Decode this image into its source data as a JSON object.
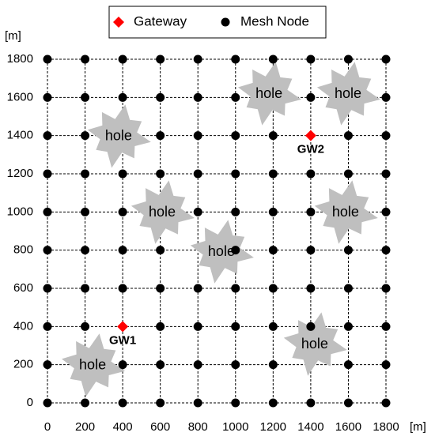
{
  "chart_data": {
    "type": "scatter",
    "xlabel": "[m]",
    "ylabel": "[m]",
    "xlim": [
      0,
      1800
    ],
    "ylim": [
      0,
      1800
    ],
    "xticks": [
      0,
      200,
      400,
      600,
      800,
      1000,
      1200,
      1400,
      1600,
      1800
    ],
    "yticks": [
      0,
      200,
      400,
      600,
      800,
      1000,
      1200,
      1400,
      1600,
      1800
    ],
    "grid": true,
    "legend": "top",
    "series": [
      {
        "name": "Gateway",
        "color": "#ff0000",
        "marker": "diamond",
        "x": [
          400,
          1400
        ],
        "values": [
          400,
          1400
        ],
        "point_labels": [
          "GW1",
          "GW2"
        ]
      },
      {
        "name": "Mesh Node",
        "color": "#000000",
        "marker": "circle",
        "x": [
          0,
          200,
          400,
          600,
          800,
          1000,
          1200,
          1400,
          1600,
          1800,
          0,
          200,
          400,
          600,
          800,
          1000,
          1400,
          1800,
          0,
          200,
          600,
          800,
          1000,
          1200,
          1600,
          1800,
          0,
          200,
          400,
          600,
          800,
          1000,
          1200,
          1400,
          1600,
          1800,
          0,
          200,
          400,
          800,
          1000,
          1200,
          1400,
          1800,
          0,
          200,
          400,
          600,
          1000,
          1200,
          1400,
          1600,
          1800,
          0,
          200,
          400,
          600,
          800,
          1000,
          1200,
          1400,
          1600,
          1800,
          0,
          200,
          600,
          800,
          1000,
          1200,
          1400,
          1600,
          1800,
          0,
          400,
          600,
          800,
          1000,
          1200,
          1600,
          1800,
          0,
          200,
          400,
          600,
          800,
          1000,
          1200,
          1400,
          1600,
          1800
        ],
        "values": [
          1800,
          1800,
          1800,
          1800,
          1800,
          1800,
          1800,
          1800,
          1800,
          1800,
          1600,
          1600,
          1600,
          1600,
          1600,
          1600,
          1600,
          1600,
          1400,
          1400,
          1400,
          1400,
          1400,
          1400,
          1400,
          1400,
          1200,
          1200,
          1200,
          1200,
          1200,
          1200,
          1200,
          1200,
          1200,
          1200,
          1000,
          1000,
          1000,
          1000,
          1000,
          1000,
          1000,
          1000,
          800,
          800,
          800,
          800,
          800,
          800,
          800,
          800,
          800,
          600,
          600,
          600,
          600,
          600,
          600,
          600,
          600,
          600,
          600,
          400,
          400,
          400,
          400,
          400,
          400,
          400,
          400,
          400,
          200,
          200,
          200,
          200,
          200,
          200,
          200,
          200,
          0,
          0,
          0,
          0,
          0,
          0,
          0,
          0,
          0,
          0
        ]
      }
    ],
    "holes": [
      {
        "label": "hole",
        "x": 1178,
        "y": 1622
      },
      {
        "label": "hole",
        "x": 1598,
        "y": 1622
      },
      {
        "label": "hole",
        "x": 378,
        "y": 1399
      },
      {
        "label": "hole",
        "x": 610,
        "y": 1001
      },
      {
        "label": "hole",
        "x": 1585,
        "y": 1001
      },
      {
        "label": "hole",
        "x": 925,
        "y": 794
      },
      {
        "label": "hole",
        "x": 1421,
        "y": 310
      },
      {
        "label": "hole",
        "x": 240,
        "y": 199
      }
    ]
  }
}
